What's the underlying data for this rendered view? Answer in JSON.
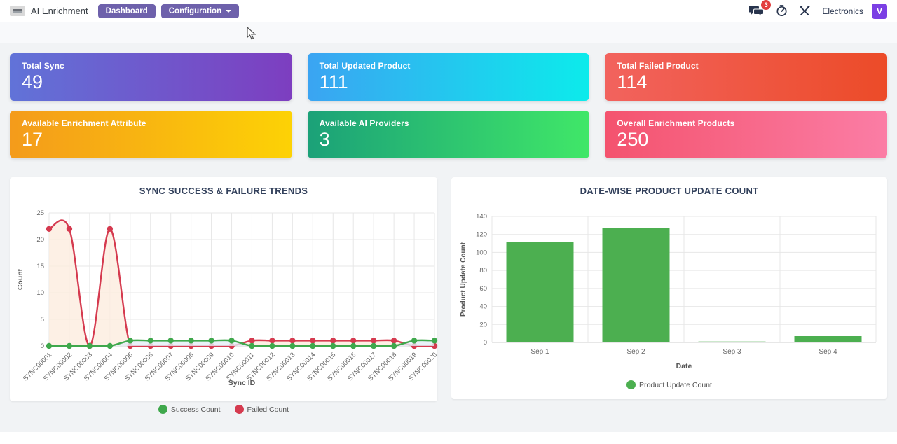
{
  "navbar": {
    "brand": "AI Enrichment",
    "dashboard_label": "Dashboard",
    "configuration_label": "Configuration",
    "chat_badge": "3",
    "tenant": "Electronics",
    "avatar_initial": "V",
    "accent_color": "#6e61ab",
    "avatar_color": "#7b3fe4",
    "badge_color": "#e23f3f",
    "icon_color": "#28344d"
  },
  "stat_cards": [
    {
      "label": "Total Sync",
      "value": "49",
      "gradient_from": "#6173d8",
      "gradient_to": "#7d3ec0"
    },
    {
      "label": "Total Updated Product",
      "value": "111",
      "gradient_from": "#3ba4f2",
      "gradient_to": "#0cebeb"
    },
    {
      "label": "Total Failed Product",
      "value": "114",
      "gradient_from": "#f2635e",
      "gradient_to": "#ec4b28"
    },
    {
      "label": "Available Enrichment Attribute",
      "value": "17",
      "gradient_from": "#f49b1b",
      "gradient_to": "#fdd205"
    },
    {
      "label": "Available AI Providers",
      "value": "3",
      "gradient_from": "#1ba178",
      "gradient_to": "#40e768"
    },
    {
      "label": "Overall Enrichment Products",
      "value": "250",
      "gradient_from": "#f4536e",
      "gradient_to": "#fb7da5"
    }
  ],
  "chart_data": [
    {
      "type": "line",
      "title": "SYNC SUCCESS & FAILURE TRENDS",
      "x": [
        "SYNC00001",
        "SYNC00002",
        "SYNC00003",
        "SYNC00004",
        "SYNC00005",
        "SYNC00006",
        "SYNC00007",
        "SYNC00008",
        "SYNC00009",
        "SYNC00010",
        "SYNC00011",
        "SYNC00012",
        "SYNC00013",
        "SYNC00014",
        "SYNC00015",
        "SYNC00016",
        "SYNC00017",
        "SYNC00018",
        "SYNC00019",
        "SYNC00020"
      ],
      "series": [
        {
          "name": "Failed Count",
          "color": "#d53a4f",
          "fill": "#fcecdf",
          "values": [
            22,
            22,
            0,
            22,
            0,
            0,
            0,
            0,
            0,
            0,
            1,
            1,
            1,
            1,
            1,
            1,
            1,
            1,
            0,
            0
          ]
        },
        {
          "name": "Success Count",
          "color": "#3fa84c",
          "fill": "#e3edf6",
          "values": [
            0,
            0,
            0,
            0,
            1,
            1,
            1,
            1,
            1,
            1,
            0,
            0,
            0,
            0,
            0,
            0,
            0,
            0,
            1,
            1
          ]
        }
      ],
      "legend_order": [
        "Success Count",
        "Failed Count"
      ],
      "xlabel": "Sync ID",
      "ylabel": "Count",
      "ylim": [
        0,
        25
      ],
      "yticks": [
        0,
        5,
        10,
        15,
        20,
        25
      ],
      "grid": true,
      "legend_position": "bottom"
    },
    {
      "type": "bar",
      "title": "DATE-WISE PRODUCT UPDATE COUNT",
      "categories": [
        "Sep 1",
        "Sep 2",
        "Sep 3",
        "Sep 4"
      ],
      "values": [
        112,
        127,
        1,
        7
      ],
      "series_name": "Product Update Count",
      "color": "#4caf50",
      "xlabel": "Date",
      "ylabel": "Product Update Count",
      "ylim": [
        0,
        140
      ],
      "yticks": [
        0,
        20,
        40,
        60,
        80,
        100,
        120,
        140
      ],
      "grid": true,
      "legend_position": "bottom"
    }
  ]
}
